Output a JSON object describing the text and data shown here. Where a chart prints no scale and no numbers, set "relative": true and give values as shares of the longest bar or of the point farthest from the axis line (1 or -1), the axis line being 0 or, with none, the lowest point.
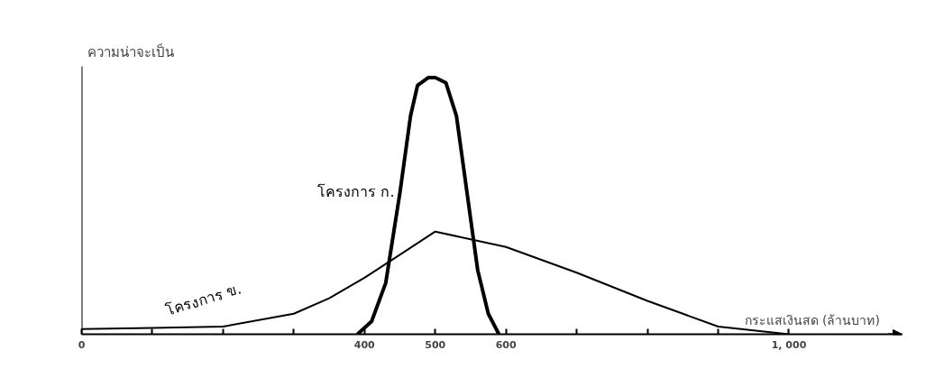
{
  "chart_data": {
    "type": "line",
    "relative": true,
    "ylabel": "ความน่าจะเป็น",
    "xlabel": "กระแสเงินสด (ล้านบาท)",
    "xlim": [
      0,
      1160
    ],
    "xticks": [
      0,
      {
        "value": 100,
        "label": null
      },
      {
        "value": 200,
        "label": null
      },
      {
        "value": 300,
        "label": null
      },
      400,
      500,
      600,
      {
        "value": 700,
        "label": null
      },
      {
        "value": 800,
        "label": null
      },
      {
        "value": 900,
        "label": null
      },
      {
        "value": 1000,
        "label": "1, 000"
      }
    ],
    "grid": false,
    "marker": "none",
    "line_style": "solid",
    "series": [
      {
        "name": "โครงการ ก.",
        "color": "#000000",
        "x": [
          390,
          410,
          430,
          450,
          465,
          475,
          490,
          500,
          515,
          530,
          545,
          560,
          575,
          590
        ],
        "values": [
          0,
          0.05,
          0.2,
          0.55,
          0.85,
          0.97,
          1.0,
          1.0,
          0.98,
          0.85,
          0.55,
          0.25,
          0.08,
          0
        ]
      },
      {
        "name": "โครงการ ข.",
        "color": "#000000",
        "x": [
          0,
          100,
          200,
          300,
          350,
          400,
          450,
          500,
          550,
          600,
          700,
          800,
          900,
          1000
        ],
        "values": [
          0.02,
          0.025,
          0.03,
          0.08,
          0.14,
          0.22,
          0.31,
          0.4,
          0.37,
          0.34,
          0.24,
          0.13,
          0.03,
          0
        ]
      }
    ]
  }
}
